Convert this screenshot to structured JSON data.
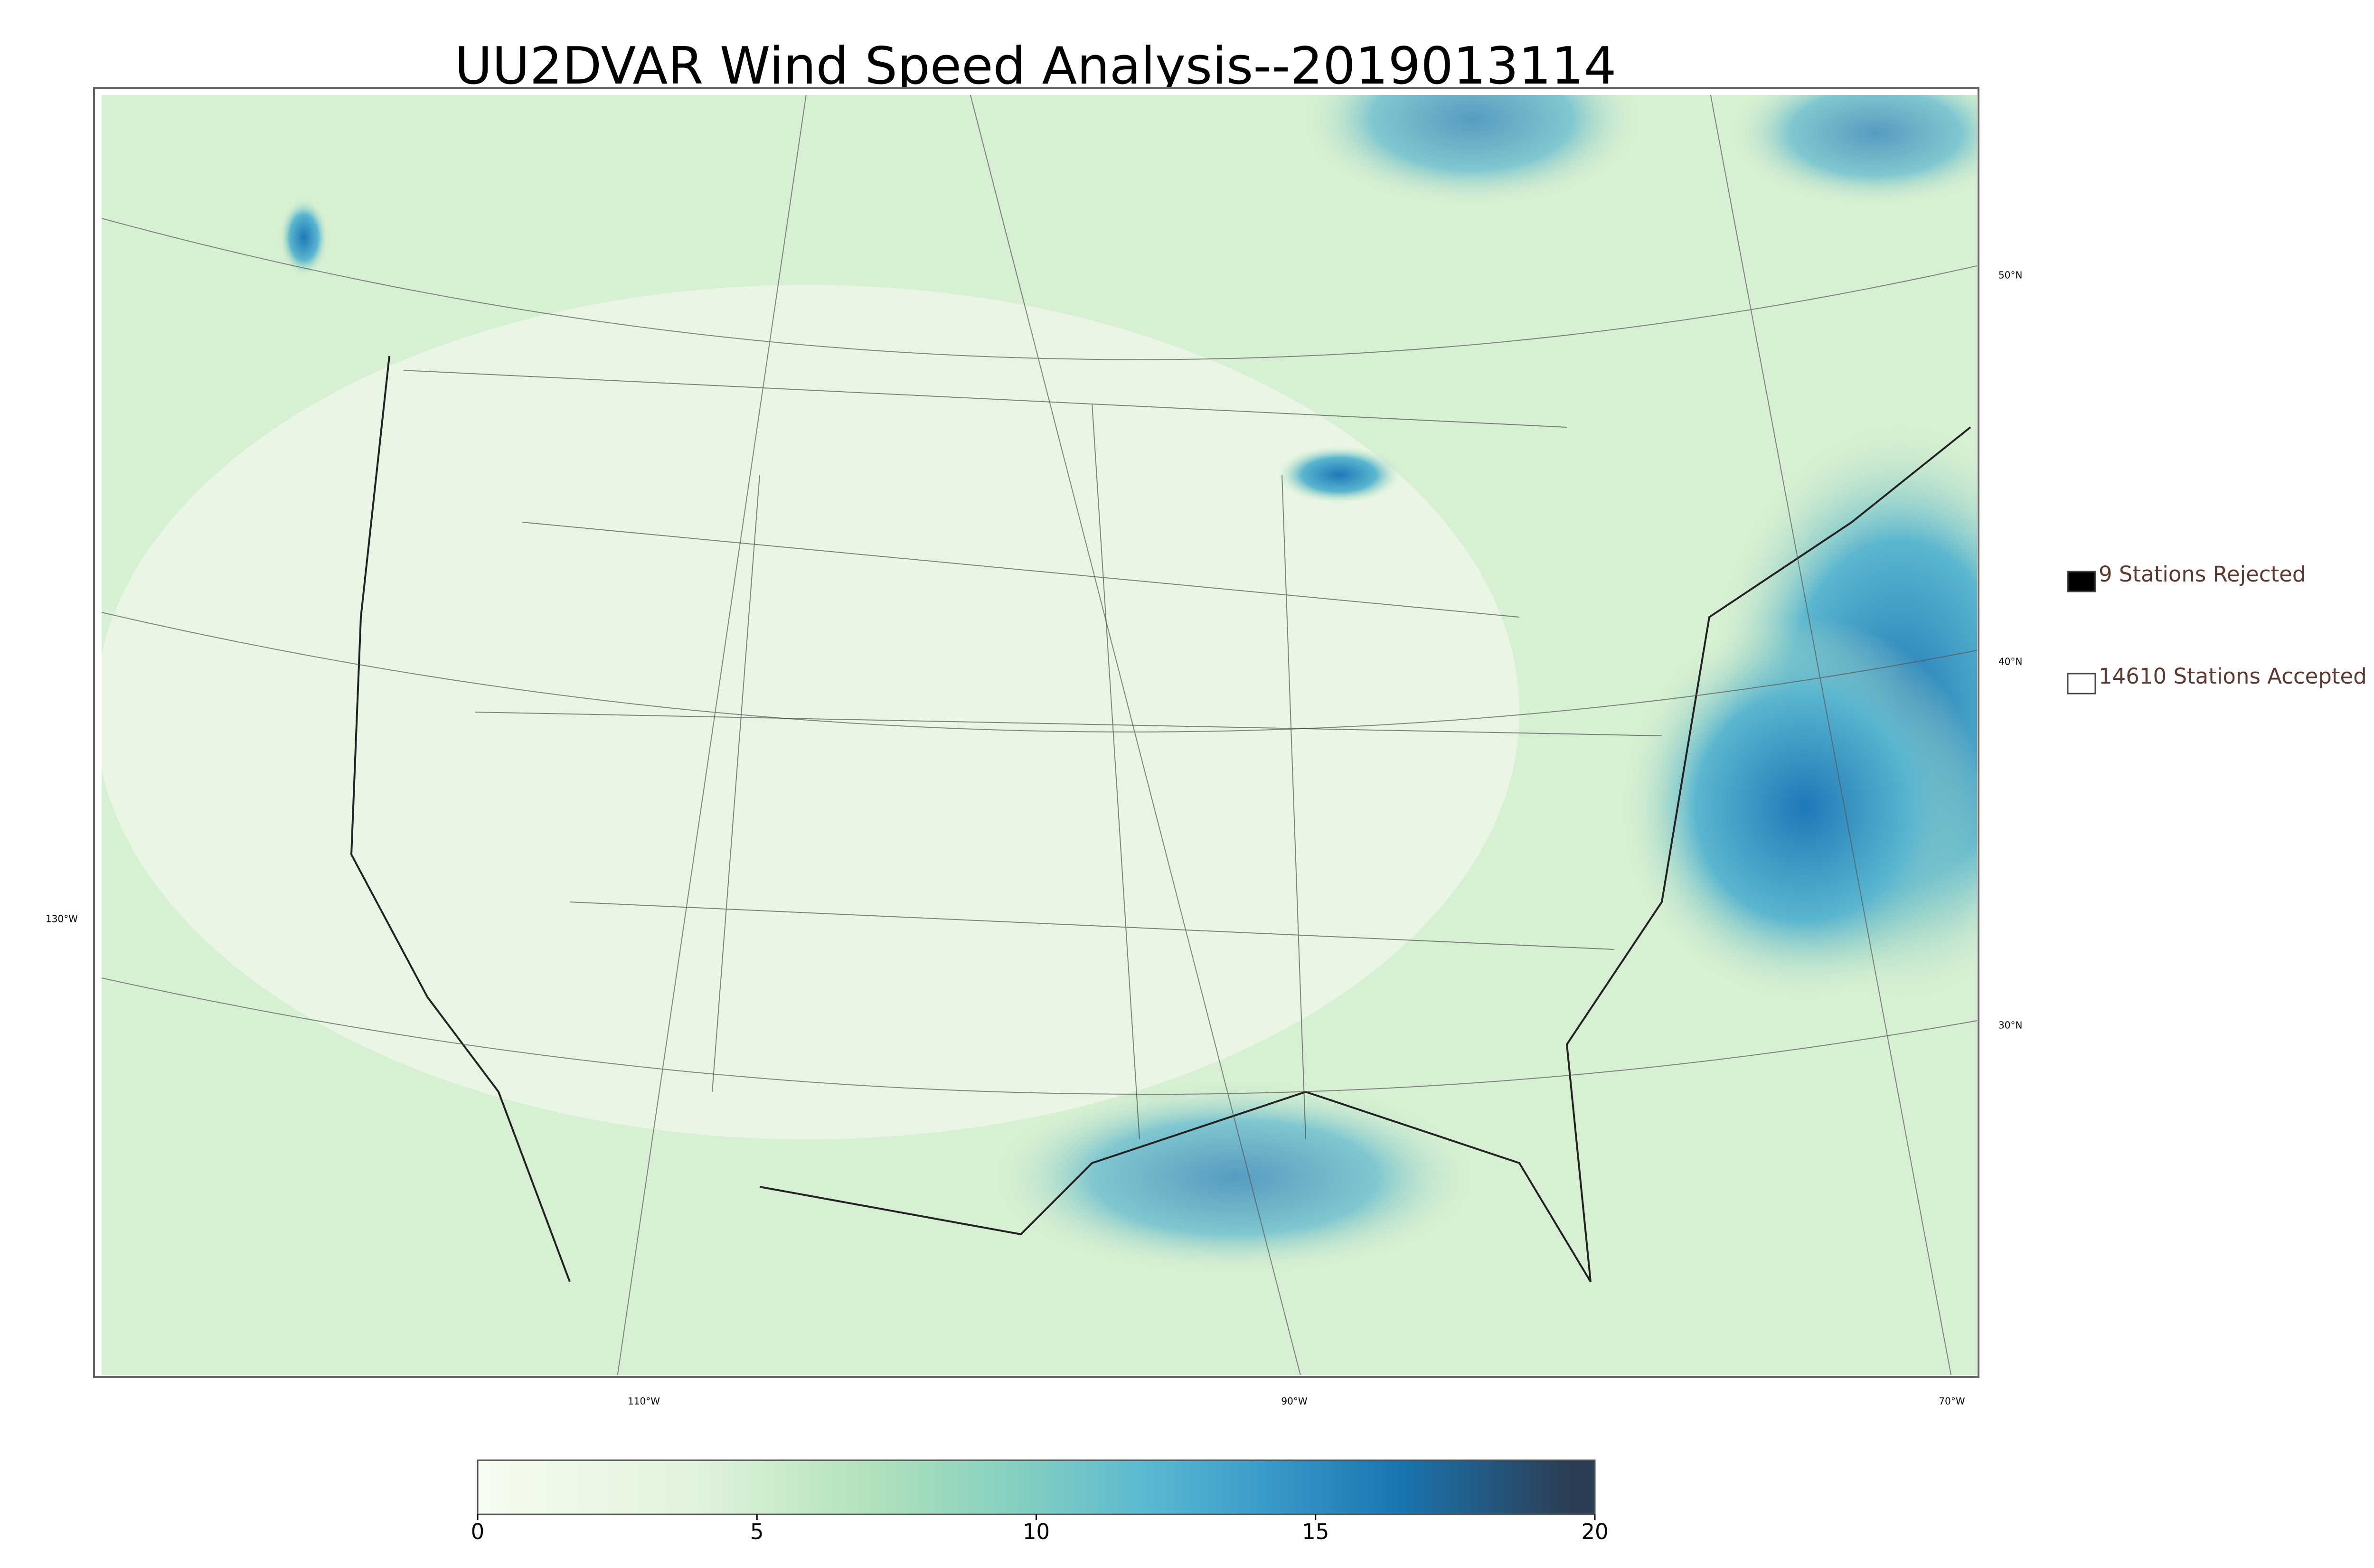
{
  "title": "UU2DVAR Wind Speed Analysis--2019013114",
  "map": {
    "lat_labels": [
      "50°N",
      "40°N",
      "30°N"
    ],
    "lon_labels": [
      "130°W",
      "110°W",
      "90°W",
      "70°W"
    ]
  },
  "legend": [
    {
      "label": "9 Stations Rejected",
      "color": "#000000"
    },
    {
      "label": "14610 Stations Accepted",
      "color": "#ffffff"
    }
  ],
  "colorbar": {
    "lim": [
      0,
      20
    ],
    "ticks": [
      0,
      5,
      10,
      15,
      20
    ],
    "stops": [
      {
        "value": 0,
        "color": "#f7fcf0"
      },
      {
        "value": 4,
        "color": "#e0f3db"
      },
      {
        "value": 7,
        "color": "#b2e2bb"
      },
      {
        "value": 10,
        "color": "#7ecdc2"
      },
      {
        "value": 12,
        "color": "#5ab8d0"
      },
      {
        "value": 14,
        "color": "#3b9ccb"
      },
      {
        "value": 16.5,
        "color": "#1a75b0"
      },
      {
        "value": 19.5,
        "color": "#2c3e55"
      }
    ]
  }
}
